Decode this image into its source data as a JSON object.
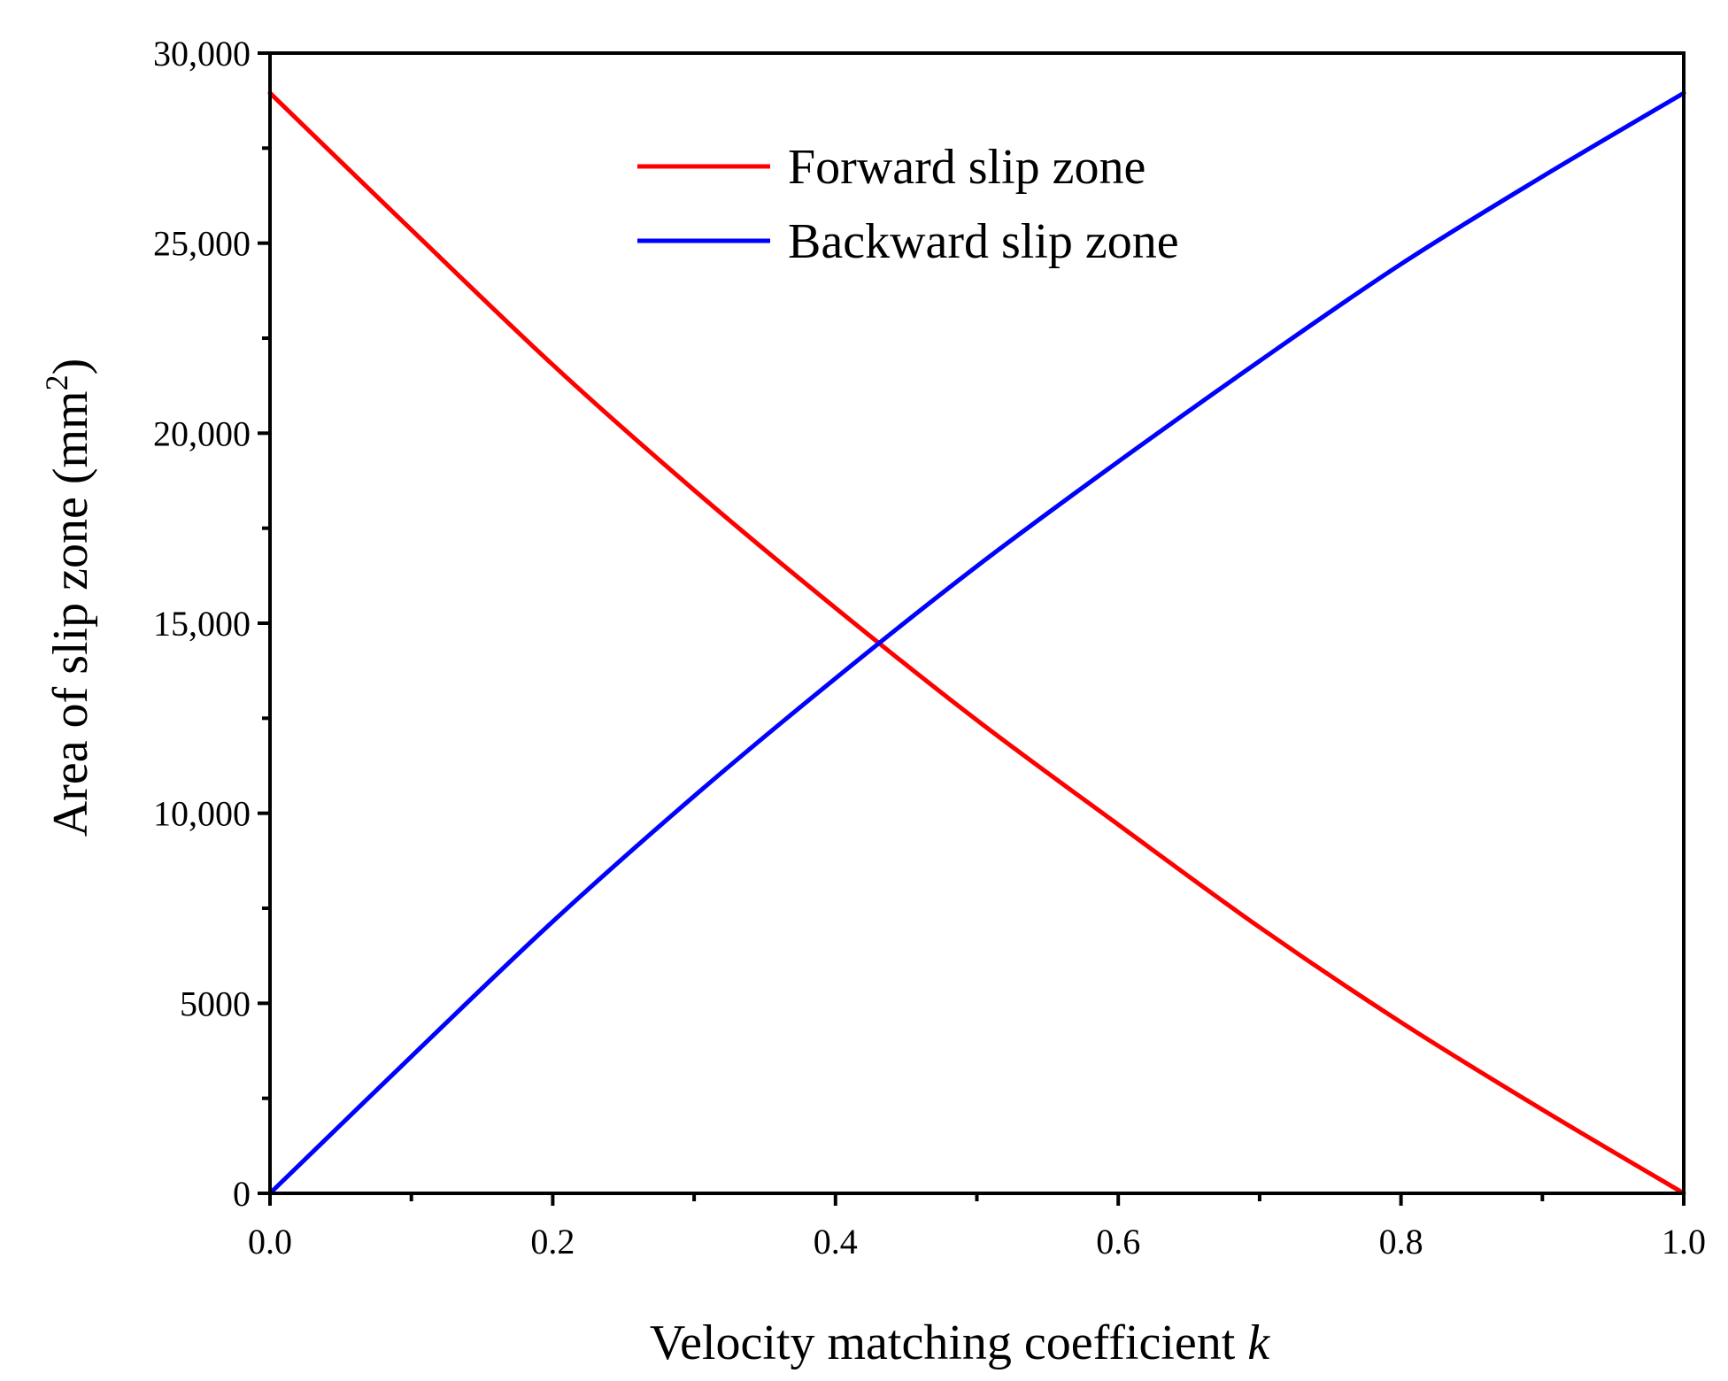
{
  "chart_data": {
    "type": "line",
    "title": "",
    "xlabel": "Velocity matching coefficient",
    "xlabel_var": "k",
    "ylabel": "Area of slip zone (mm",
    "ylabel_sup": "2",
    "ylabel_close": ")",
    "xlim": [
      0,
      1
    ],
    "ylim": [
      0,
      30000
    ],
    "x_ticks": [
      0,
      0.1,
      0.2,
      0.3,
      0.4,
      0.5,
      0.6,
      0.7,
      0.8,
      0.9,
      1.0
    ],
    "x_tick_labels": [
      {
        "value": 0,
        "label": "0.0"
      },
      {
        "value": 0.2,
        "label": "0.2"
      },
      {
        "value": 0.4,
        "label": "0.4"
      },
      {
        "value": 0.6,
        "label": "0.6"
      },
      {
        "value": 0.8,
        "label": "0.8"
      },
      {
        "value": 1.0,
        "label": "1.0"
      }
    ],
    "y_ticks": [
      0,
      2500,
      5000,
      7500,
      10000,
      12500,
      15000,
      17500,
      20000,
      22500,
      25000,
      27500,
      30000
    ],
    "y_tick_labels": [
      {
        "value": 0,
        "label": "0"
      },
      {
        "value": 5000,
        "label": "5000"
      },
      {
        "value": 10000,
        "label": "10,000"
      },
      {
        "value": 15000,
        "label": "15,000"
      },
      {
        "value": 20000,
        "label": "20,000"
      },
      {
        "value": 25000,
        "label": "25,000"
      },
      {
        "value": 30000,
        "label": "30,000"
      }
    ],
    "grid": false,
    "legend_position": "top-center",
    "series": [
      {
        "name": "Forward slip zone",
        "color": "#ff0000",
        "x": [
          0.0,
          0.1,
          0.2,
          0.3,
          0.4,
          0.5,
          0.6,
          0.7,
          0.8,
          0.9,
          1.0
        ],
        "values": [
          28950,
          25350,
          21800,
          18500,
          15400,
          12450,
          9700,
          7000,
          4500,
          2200,
          0
        ]
      },
      {
        "name": "Backward slip zone",
        "color": "#0000ff",
        "x": [
          0.0,
          0.1,
          0.2,
          0.3,
          0.4,
          0.5,
          0.6,
          0.7,
          0.8,
          0.9,
          1.0
        ],
        "values": [
          0,
          3600,
          7150,
          10450,
          13550,
          16500,
          19250,
          21900,
          24450,
          26750,
          28950
        ]
      }
    ]
  }
}
